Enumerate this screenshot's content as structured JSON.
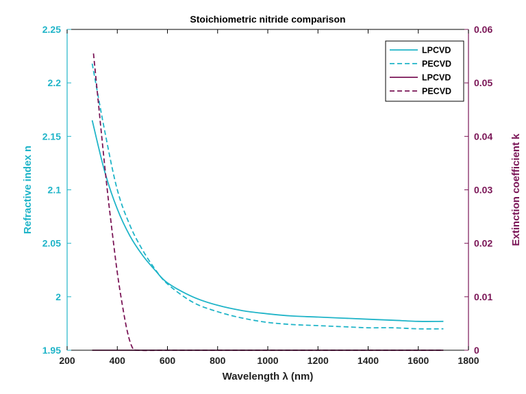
{
  "chart_data": {
    "type": "line",
    "title": "Stoichiometric nitride comparison",
    "xlabel": "Wavelength λ (nm)",
    "ylabel_left": "Refractive index n",
    "ylabel_right": "Extinction coefficient k",
    "xlim": [
      200,
      1800
    ],
    "ylim_left": [
      1.95,
      2.25
    ],
    "ylim_right": [
      0,
      0.06
    ],
    "xticks": [
      "200",
      "400",
      "600",
      "800",
      "1000",
      "1200",
      "1400",
      "1600",
      "1800"
    ],
    "yticks_left": [
      "1.95",
      "2",
      "2.05",
      "2.1",
      "2.15",
      "2.2",
      "2.25"
    ],
    "yticks_right": [
      "0",
      "0.01",
      "0.02",
      "0.03",
      "0.04",
      "0.05",
      "0.06"
    ],
    "grid": false,
    "legend_position": "top-right",
    "colors": {
      "n_axis": "#1fb4c8",
      "k_axis": "#7a1556"
    },
    "series": [
      {
        "name": "LPCVD",
        "axis": "left",
        "style": "solid",
        "color": "#1fb4c8",
        "x": [
          300,
          350,
          400,
          450,
          500,
          550,
          600,
          700,
          800,
          900,
          1000,
          1100,
          1200,
          1300,
          1400,
          1500,
          1600,
          1700
        ],
        "values": [
          2.165,
          2.117,
          2.082,
          2.057,
          2.039,
          2.025,
          2.013,
          2.0,
          1.992,
          1.987,
          1.984,
          1.982,
          1.981,
          1.98,
          1.979,
          1.978,
          1.977,
          1.977
        ]
      },
      {
        "name": "PECVD",
        "axis": "left",
        "style": "dashed",
        "color": "#1fb4c8",
        "x": [
          300,
          350,
          400,
          450,
          500,
          550,
          600,
          700,
          800,
          900,
          1000,
          1100,
          1200,
          1300,
          1400,
          1500,
          1600,
          1700
        ],
        "values": [
          2.218,
          2.155,
          2.1,
          2.067,
          2.044,
          2.026,
          2.012,
          1.995,
          1.986,
          1.98,
          1.976,
          1.974,
          1.973,
          1.972,
          1.971,
          1.971,
          1.97,
          1.97
        ]
      },
      {
        "name": "LPCVD",
        "axis": "right",
        "style": "solid",
        "color": "#7a1556",
        "x": [
          300,
          500,
          800,
          1100,
          1400,
          1700
        ],
        "values": [
          0,
          0,
          0,
          0,
          0,
          0
        ]
      },
      {
        "name": "PECVD",
        "axis": "right",
        "style": "dashed",
        "color": "#7a1556",
        "x": [
          305,
          320,
          340,
          360,
          380,
          400,
          420,
          440,
          460,
          480,
          600,
          800,
          1000,
          1200,
          1400,
          1700
        ],
        "values": [
          0.0555,
          0.0485,
          0.039,
          0.03,
          0.022,
          0.0145,
          0.0085,
          0.0035,
          0.0005,
          0,
          0,
          0,
          0,
          0,
          0,
          0
        ]
      }
    ]
  }
}
